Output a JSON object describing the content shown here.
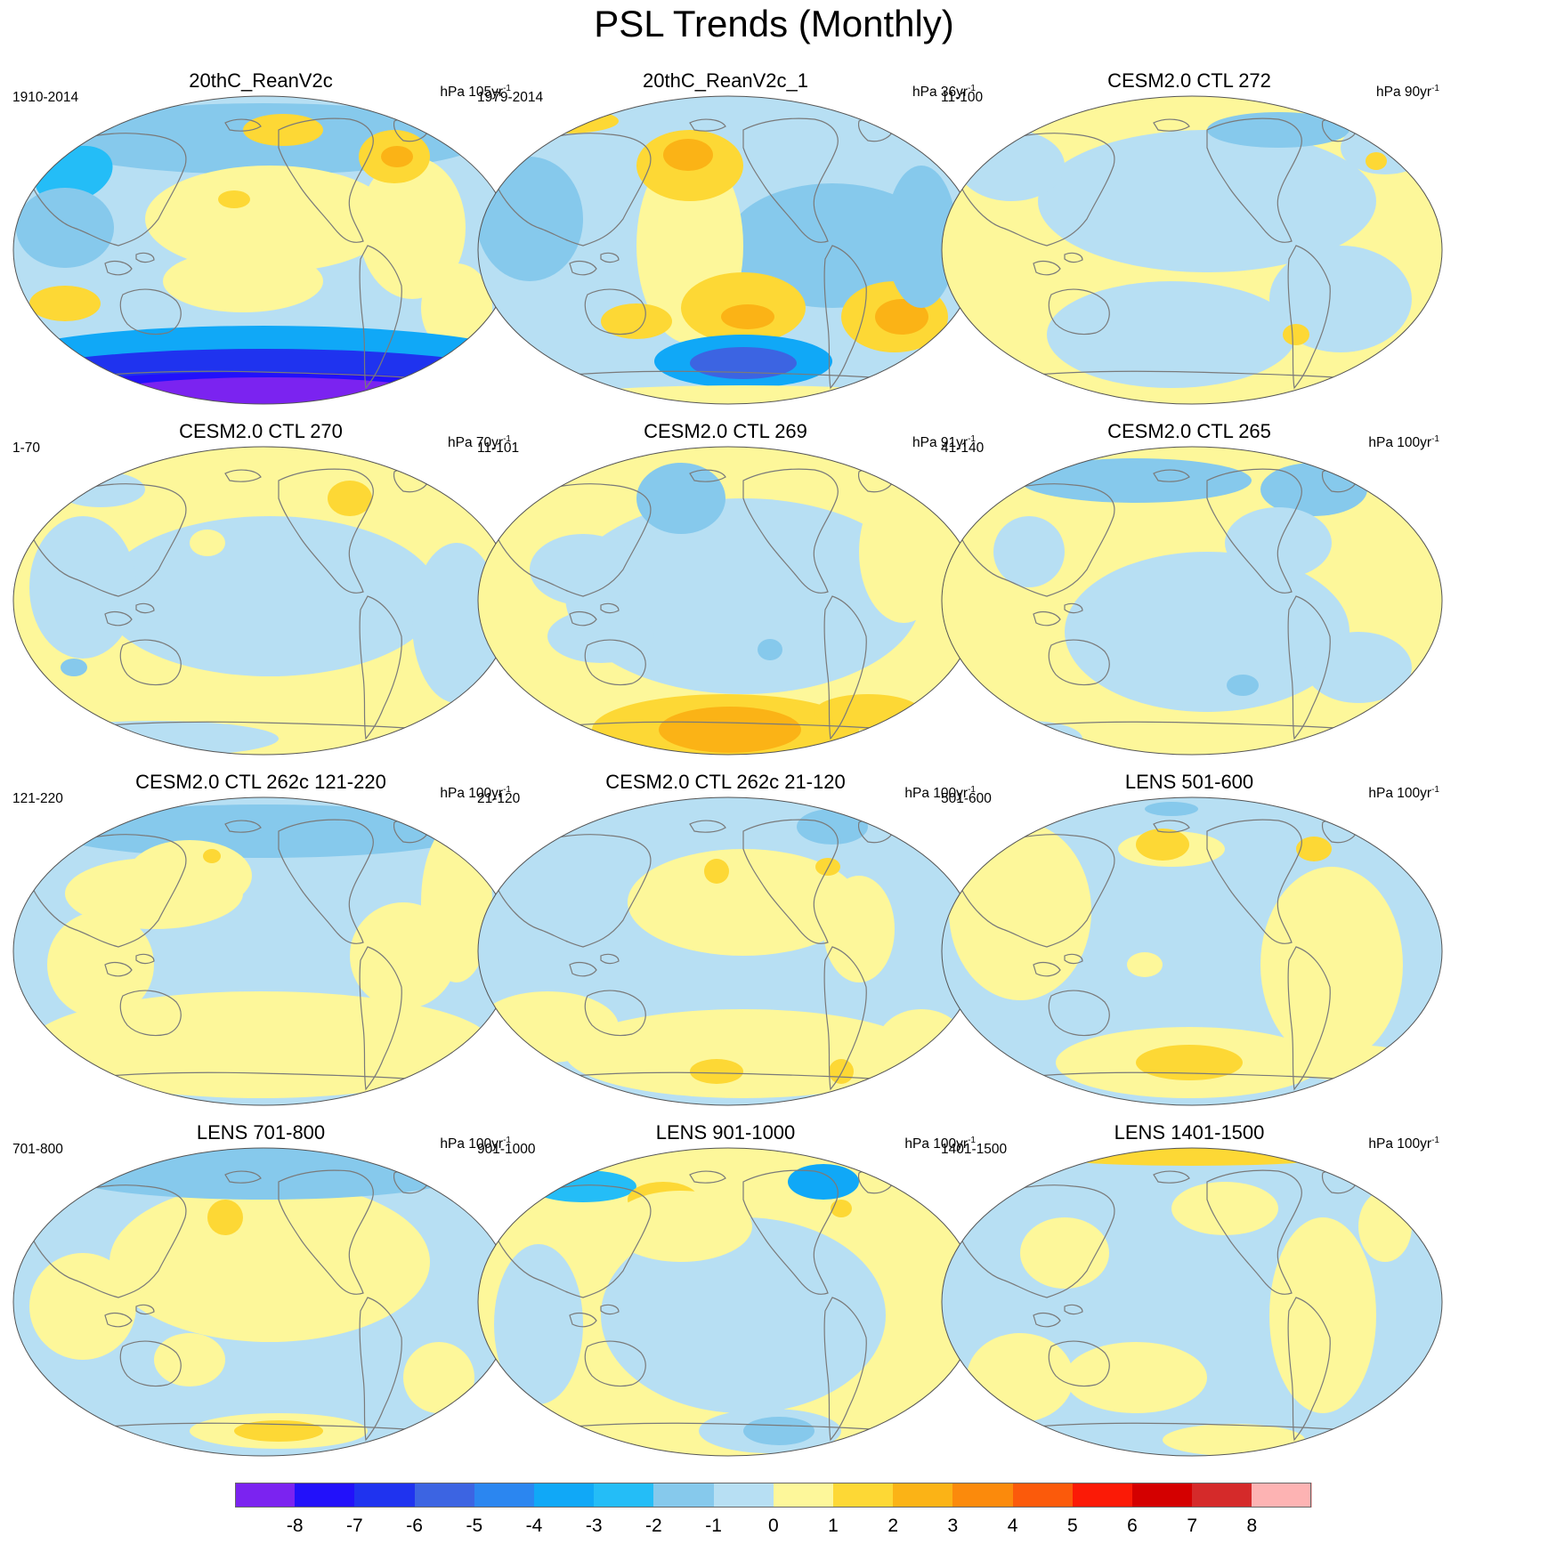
{
  "title": "PSL Trends (Monthly)",
  "colors": {
    "neg1": "#b7dff3",
    "neg2": "#86c9ec",
    "neg3": "#24bdf7",
    "neg4": "#10a8f7",
    "neg5": "#2b86f0",
    "neg6": "#3c64e2",
    "neg7": "#1f33ef",
    "neg8": "#2211fa",
    "neg9": "#7b23f0",
    "pos1": "#fdf79a",
    "pos2": "#fdd835",
    "pos3": "#fbb316",
    "pos4": "#fb8a0c",
    "coast": "#7a7a7a",
    "border": "#555555"
  },
  "panels": [
    {
      "title": "20thC_ReanV2c",
      "period": "1910-2014",
      "units": "hPa 105yr",
      "units_exp": "-1"
    },
    {
      "title": "20thC_ReanV2c_1",
      "period": "1979-2014",
      "units": "hPa 36yr",
      "units_exp": "-1"
    },
    {
      "title": "CESM2.0 CTL 272",
      "period": "11-100",
      "units": "hPa 90yr",
      "units_exp": "-1"
    },
    {
      "title": "CESM2.0 CTL 270",
      "period": "1-70",
      "units": "hPa 70yr",
      "units_exp": "-1"
    },
    {
      "title": "CESM2.0 CTL 269",
      "period": "11-101",
      "units": "hPa 91yr",
      "units_exp": "-1"
    },
    {
      "title": "CESM2.0 CTL 265",
      "period": "41-140",
      "units": "hPa 100yr",
      "units_exp": "-1"
    },
    {
      "title": "CESM2.0 CTL 262c 121-220",
      "period": "121-220",
      "units": "hPa 100yr",
      "units_exp": "-1"
    },
    {
      "title": "CESM2.0 CTL 262c 21-120",
      "period": "21-120",
      "units": "hPa 100yr",
      "units_exp": "-1"
    },
    {
      "title": "LENS 501-600",
      "period": "501-600",
      "units": "hPa 100yr",
      "units_exp": "-1"
    },
    {
      "title": "LENS 701-800",
      "period": "701-800",
      "units": "hPa 100yr",
      "units_exp": "-1"
    },
    {
      "title": "LENS 901-1000",
      "period": "901-1000",
      "units": "hPa 100yr",
      "units_exp": "-1"
    },
    {
      "title": "LENS 1401-1500",
      "period": "1401-1500",
      "units": "hPa 100yr",
      "units_exp": "-1"
    }
  ],
  "colorbar": {
    "colors": [
      "#7b23f0",
      "#2211fa",
      "#1f33ef",
      "#3c64e2",
      "#2b86f0",
      "#10a8f7",
      "#24bdf7",
      "#86c9ec",
      "#b7dff3",
      "#fdf79a",
      "#fdd835",
      "#fbb316",
      "#fb8a0c",
      "#fb5a0b",
      "#fb1a06",
      "#d40000",
      "#d52a2a",
      "#fdb3b3"
    ],
    "labels": [
      "-8",
      "-7",
      "-6",
      "-5",
      "-4",
      "-3",
      "-2",
      "-1",
      "0",
      "1",
      "2",
      "3",
      "4",
      "5",
      "6",
      "7",
      "8"
    ]
  }
}
